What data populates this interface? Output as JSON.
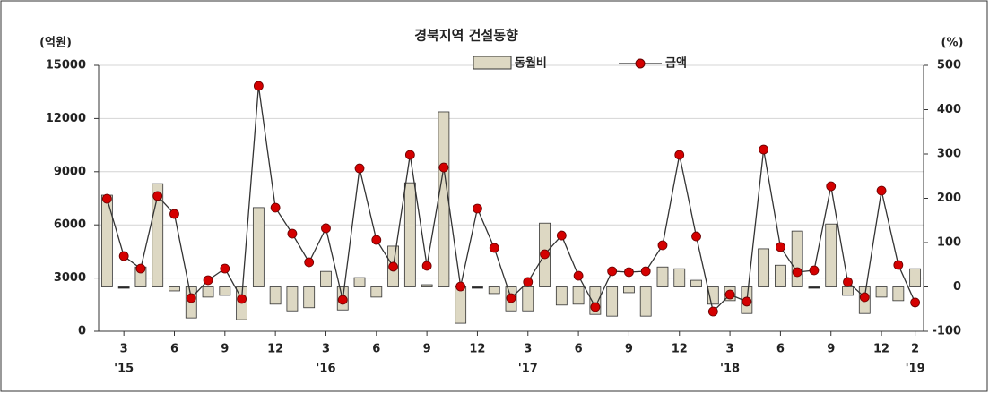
{
  "chart_data": {
    "type": "bar_line",
    "title": "경북지역 건설동향",
    "ylabel": "(억원)",
    "y2label": "(%)",
    "categories": [
      null,
      "3",
      null,
      null,
      "6",
      null,
      null,
      "9",
      null,
      null,
      "12",
      null,
      null,
      "3",
      null,
      null,
      "6",
      null,
      null,
      "9",
      null,
      null,
      "12",
      null,
      null,
      "3",
      null,
      null,
      "6",
      null,
      null,
      "9",
      null,
      null,
      "12",
      null,
      null,
      "3",
      null,
      null,
      "6",
      null,
      null,
      "9",
      null,
      null,
      "12",
      null,
      "2"
    ],
    "category_years": [
      null,
      "'15",
      null,
      null,
      null,
      null,
      null,
      null,
      null,
      null,
      null,
      null,
      null,
      "'16",
      null,
      null,
      null,
      null,
      null,
      null,
      null,
      null,
      null,
      null,
      null,
      "'17",
      null,
      null,
      null,
      null,
      null,
      null,
      null,
      null,
      null,
      null,
      null,
      "'18",
      null,
      null,
      null,
      null,
      null,
      null,
      null,
      null,
      null,
      null,
      "'19"
    ],
    "ylim": [
      0,
      15000
    ],
    "yticks": [
      0,
      3000,
      6000,
      9000,
      12000,
      15000
    ],
    "y2lim": [
      -100,
      500
    ],
    "y2ticks": [
      -100,
      0,
      100,
      200,
      300,
      400,
      500
    ],
    "grid": true,
    "series": [
      {
        "name": "동월비",
        "type": "bar",
        "axis": "y2",
        "color": "#ddd8c3",
        "values": [
          207,
          -2,
          45,
          233,
          -9,
          -70,
          -23,
          -19,
          -74,
          179,
          -39,
          -54,
          -47,
          35,
          -52,
          21,
          -23,
          92,
          235,
          5,
          395,
          -82,
          -1,
          -15,
          -54,
          -54,
          144,
          -41,
          -39,
          -62,
          -66,
          -13,
          -66,
          45,
          41,
          15,
          -39,
          -31,
          -60,
          86,
          49,
          126,
          -1,
          142,
          -19,
          -60,
          -23,
          -31,
          41
        ]
      },
      {
        "name": "금액",
        "type": "line",
        "color": "#d40000",
        "values": [
          7475,
          4240,
          3535,
          7630,
          6616,
          1870,
          2880,
          3535,
          1820,
          13840,
          6970,
          5505,
          3890,
          5810,
          1770,
          9190,
          5150,
          3640,
          9950,
          3690,
          9240,
          2525,
          6920,
          4700,
          1870,
          2780,
          4345,
          5400,
          3130,
          1365,
          3385,
          3335,
          3385,
          4850,
          9950,
          5350,
          1110,
          2070,
          1670,
          10250,
          4750,
          3335,
          3435,
          8180,
          2780,
          1920,
          7930,
          3740,
          1620
        ]
      }
    ]
  }
}
